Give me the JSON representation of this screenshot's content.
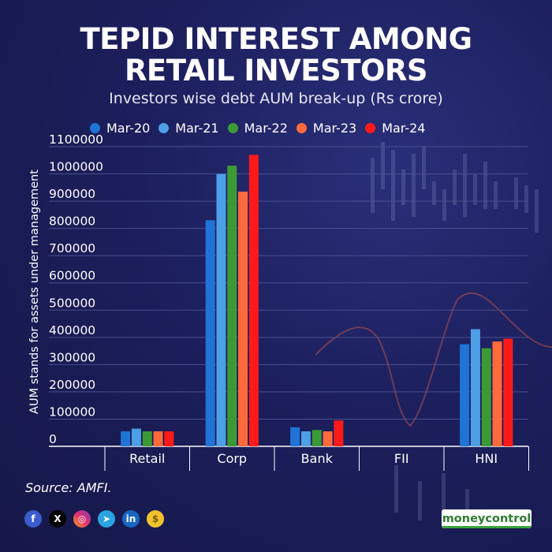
{
  "header": {
    "title_line1": "TEPID INTEREST AMONG",
    "title_line2": "RETAIL INVESTORS",
    "subtitle": "Investors wise debt AUM break-up (Rs crore)"
  },
  "footer": {
    "source": "Source: AMFI.",
    "brand": "moneycontrol",
    "socials": [
      "facebook-icon",
      "x-icon",
      "instagram-icon",
      "telegram-icon",
      "linkedin-icon",
      "moneycontrol-coin-icon"
    ]
  },
  "colors": {
    "Mar-20": "#1f74d6",
    "Mar-21": "#4d9fe6",
    "Mar-22": "#3c9a36",
    "Mar-23": "#ff6a3d",
    "Mar-24": "#ff1a1a",
    "axis": "#ffffff",
    "grid": "#4a4f8f"
  },
  "chart_data": {
    "type": "bar",
    "title": "Investors wise debt AUM break-up (Rs crore)",
    "xlabel": "",
    "ylabel": "AUM stands for assets under management",
    "categories": [
      "Retail",
      "Corp",
      "Bank",
      "FII",
      "HNI"
    ],
    "series": [
      {
        "name": "Mar-20",
        "values": [
          55000,
          830000,
          70000,
          0,
          375000
        ]
      },
      {
        "name": "Mar-21",
        "values": [
          65000,
          1000000,
          55000,
          0,
          430000
        ]
      },
      {
        "name": "Mar-22",
        "values": [
          55000,
          1030000,
          60000,
          0,
          360000
        ]
      },
      {
        "name": "Mar-23",
        "values": [
          55000,
          935000,
          55000,
          0,
          385000
        ]
      },
      {
        "name": "Mar-24",
        "values": [
          55000,
          1070000,
          95000,
          0,
          395000
        ]
      }
    ],
    "ylim": [
      0,
      1100000
    ],
    "yticks": [
      0,
      100000,
      200000,
      300000,
      400000,
      500000,
      600000,
      700000,
      800000,
      900000,
      1000000,
      1100000
    ],
    "grid": true,
    "legend_position": "top"
  }
}
